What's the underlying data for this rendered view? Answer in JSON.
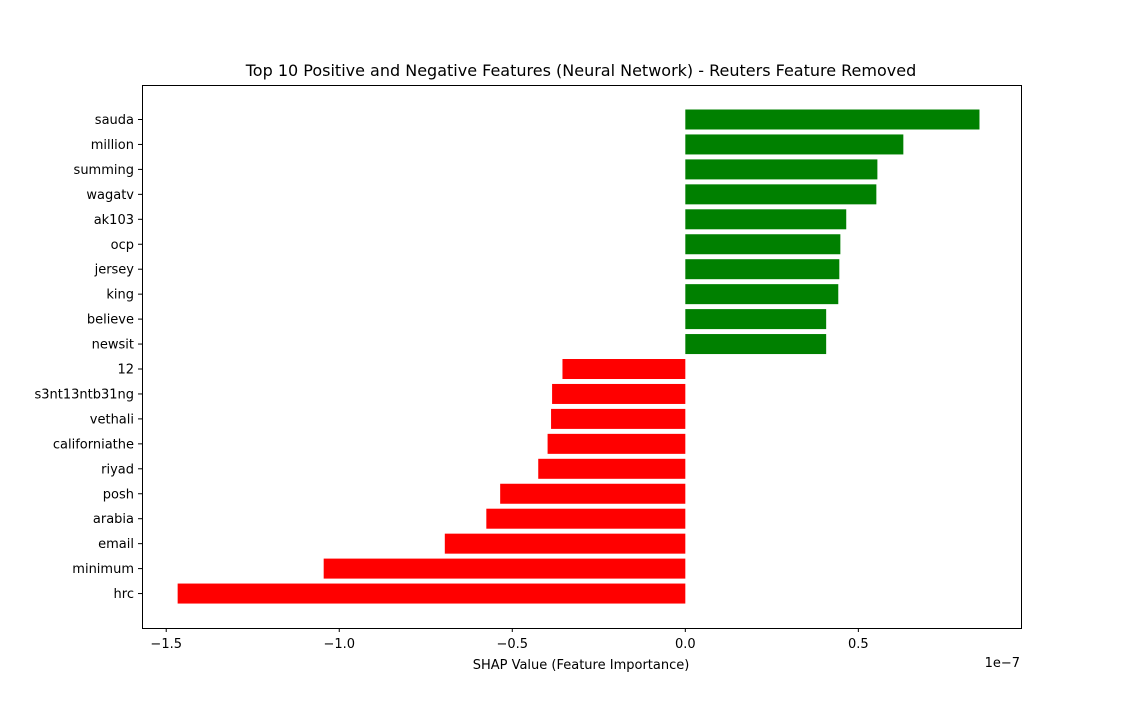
{
  "chart_data": {
    "type": "bar",
    "orientation": "horizontal",
    "title": "Top 10 Positive and Negative Features (Neural Network) - Reuters Feature Removed",
    "xlabel": "SHAP Value (Feature Importance)",
    "ylabel": "",
    "x_scale_label": "1e−7",
    "xlim": [
      -1.57,
      0.97
    ],
    "xticks": [
      -1.5,
      -1.0,
      -0.5,
      0.0,
      0.5
    ],
    "xtick_labels": [
      "−1.5",
      "−1.0",
      "−0.5",
      "0.0",
      "0.5"
    ],
    "grid": false,
    "legend": "none",
    "colors": {
      "positive": "#008000",
      "negative": "#ff0000"
    },
    "categories": [
      "sauda",
      "million",
      "summing",
      "wagatv",
      "ak103",
      "ocp",
      "jersey",
      "king",
      "believe",
      "newsit",
      "12",
      "s3nt13ntb31ng",
      "vethali",
      "californiathe",
      "riyad",
      "posh",
      "arabia",
      "email",
      "minimum",
      "hrc"
    ],
    "values": [
      0.85,
      0.63,
      0.555,
      0.552,
      0.465,
      0.448,
      0.445,
      0.442,
      0.407,
      0.407,
      -0.355,
      -0.385,
      -0.388,
      -0.398,
      -0.425,
      -0.535,
      -0.575,
      -0.695,
      -1.045,
      -1.467
    ]
  }
}
